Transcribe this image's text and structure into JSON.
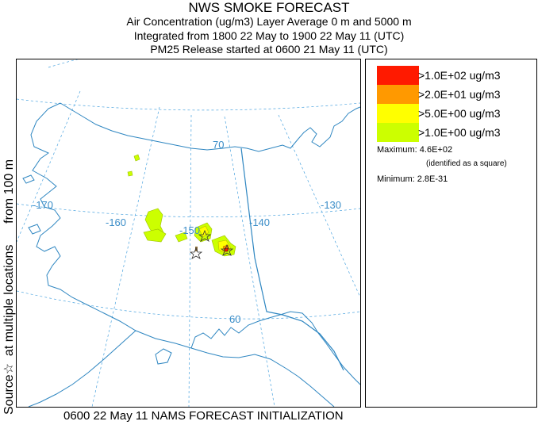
{
  "title": {
    "line1": "NWS SMOKE FORECAST",
    "line2": "Air Concentration (ug/m3) Layer Average    0 m and  5000 m",
    "line3": "Integrated from 1800 22 May to 1900 22 May 11 (UTC)",
    "line4": "PM25 Release started at 0600 21 May 11 (UTC)"
  },
  "side_label": {
    "source": "Source",
    "star": "☆",
    "locations": "at multiple locations",
    "from": "from   100 m"
  },
  "map": {
    "grid_labels": {
      "lon_170": "-170",
      "lon_160": "-160",
      "lon_150": "-150",
      "lon_140": "-140",
      "lon_130": "-130",
      "lat_70": "70",
      "lat_60": "60"
    },
    "colors": {
      "coast": "#2e86c1",
      "grid": "#4aa3df"
    }
  },
  "legend": {
    "items": [
      {
        "label": ">1.0E+02 ug/m3",
        "color": "#ff1a00"
      },
      {
        "label": ">2.0E+01 ug/m3",
        "color": "#ff9900"
      },
      {
        "label": ">5.0E+00 ug/m3",
        "color": "#ffff00"
      },
      {
        "label": ">1.0E+00 ug/m3",
        "color": "#ccff00"
      }
    ],
    "maximum": "Maximum: 4.6E+02",
    "max_note": "(identified as a square)",
    "minimum": "Minimum: 2.8E-31"
  },
  "footer": "0600 22 May 11 NAMS FORECAST INITIALIZATION"
}
